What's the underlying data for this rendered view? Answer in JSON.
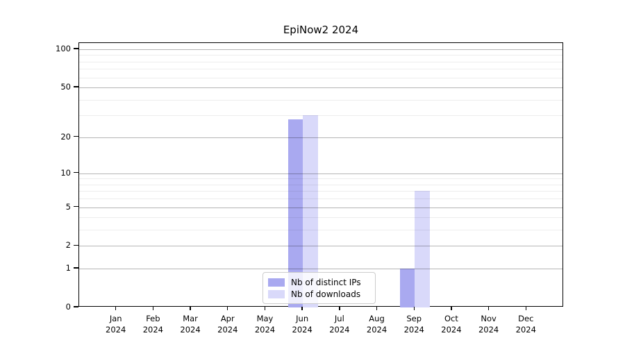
{
  "figure": {
    "title": "EpiNow2 2024"
  },
  "chart_data": {
    "type": "bar",
    "title": "EpiNow2 2024",
    "categories": [
      "Jan",
      "Feb",
      "Mar",
      "Apr",
      "May",
      "Jun",
      "Jul",
      "Aug",
      "Sep",
      "Oct",
      "Nov",
      "Dec"
    ],
    "category_year": "2024",
    "series": [
      {
        "name": "Nb of distinct IPs",
        "color": "#a9a9f0",
        "values": [
          0,
          0,
          0,
          0,
          0,
          28,
          0,
          0,
          1,
          0,
          0,
          0
        ]
      },
      {
        "name": "Nb of downloads",
        "color": "#d9d9fa",
        "values": [
          0,
          0,
          0,
          0,
          0,
          30,
          0,
          0,
          7,
          0,
          0,
          0
        ]
      }
    ],
    "y_axis": {
      "scale": "log10(1+x)",
      "tick_values": [
        0,
        1,
        2,
        5,
        10,
        20,
        50,
        100
      ],
      "minor_gridline_values": [
        3,
        4,
        6,
        7,
        8,
        9,
        30,
        40,
        60,
        70,
        80,
        90
      ],
      "range_min": 0,
      "range_max": 112
    },
    "legend": {
      "position": "bottom-center",
      "entries": [
        "Nb of distinct IPs",
        "Nb of downloads"
      ]
    },
    "grid": true,
    "colors": {
      "major_gridline": "#b5b5b5",
      "minor_gridline": "#ededed",
      "axis": "#000000",
      "background": "#ffffff"
    }
  }
}
